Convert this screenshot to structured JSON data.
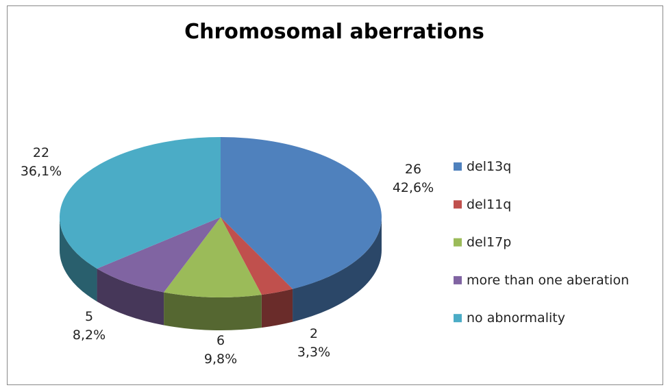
{
  "chart_data": {
    "type": "pie",
    "title": "Chromosomal aberrations",
    "categories": [
      "del13q",
      "del11q",
      "del17p",
      "more than one aberation",
      "no abnormality"
    ],
    "values": [
      26,
      2,
      6,
      5,
      22
    ],
    "percent_labels": [
      "42,6%",
      "3,3%",
      "9,8%",
      "8,2%",
      "36,1%"
    ],
    "colors": [
      "#4f81bd",
      "#c0504d",
      "#9bbb59",
      "#8064a2",
      "#4bacc6"
    ],
    "legend": "right"
  }
}
